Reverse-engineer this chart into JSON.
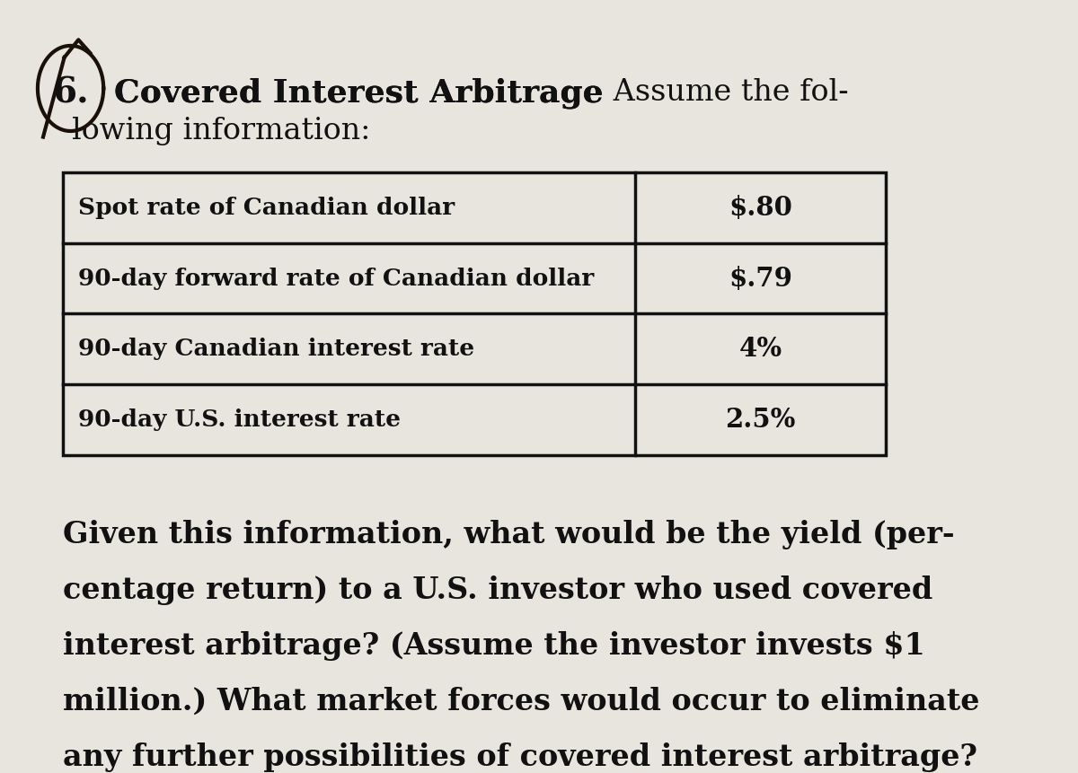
{
  "background_color": "#e8e5df",
  "text_color": "#111111",
  "table_border_color": "#111111",
  "title_bold": "Covered Interest Arbitrage",
  "title_regular": " Assume the fol-",
  "title_line2": "lowing information:",
  "table_rows": [
    [
      "Spot rate of Canadian dollar",
      "$.80"
    ],
    [
      "90-day forward rate of Canadian dollar",
      "$.79"
    ],
    [
      "90-day Canadian interest rate",
      "4%"
    ],
    [
      "90-day U.S. interest rate",
      "2.5%"
    ]
  ],
  "paragraph_lines": [
    "Given this information, what would be the yield (per-",
    "centage return) to a U.S. investor who used covered",
    "interest arbitrage? (Assume the investor invests $1",
    "million.) What market forces would occur to eliminate",
    "any further possibilities of covered interest arbitrage?"
  ],
  "font_size_title": 26,
  "font_size_table": 19,
  "font_size_paragraph": 24
}
